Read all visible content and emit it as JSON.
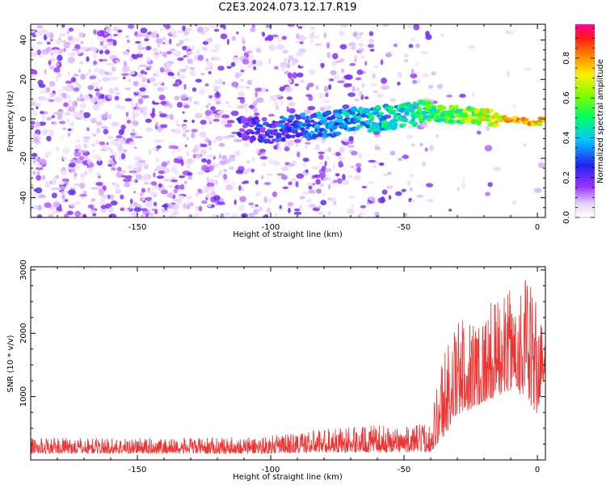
{
  "title": "C2E3.2024.073.12.17.R19",
  "chart_data": [
    {
      "type": "heatmap",
      "xlabel": "Height of straight line (km)",
      "ylabel": "Frequency (Hz)",
      "xlim": [
        -190,
        3
      ],
      "ylim": [
        -50,
        48
      ],
      "x_ticks": [
        -150,
        -100,
        -50,
        0
      ],
      "x_tick_labels": [
        "-150",
        "-100",
        "-50",
        "0"
      ],
      "y_ticks": [
        -40,
        -20,
        0,
        20,
        40
      ],
      "y_tick_labels": [
        "-40",
        "-20",
        "0",
        "20",
        "40"
      ],
      "colorbar": {
        "label": "Normalized spectral amplitude",
        "range": [
          0.0,
          0.97
        ],
        "ticks": [
          0.0,
          0.2,
          0.4,
          0.6,
          0.8
        ],
        "tick_labels": [
          "0.0",
          "0.2",
          "0.4",
          "0.6",
          "0.8"
        ],
        "colormap": "rainbow (white-violet-blue-cyan-green-yellow-red-magenta)"
      },
      "ridge": {
        "x": [
          -110,
          -100,
          -90,
          -80,
          -70,
          -60,
          -50,
          -40,
          -30,
          -20,
          -10,
          -5,
          0,
          3
        ],
        "y": [
          -5,
          -6,
          -4,
          -3,
          -1,
          0,
          2,
          3,
          2,
          1,
          0,
          -1,
          -2,
          0
        ],
        "amplitude": [
          0.3,
          0.35,
          0.4,
          0.45,
          0.5,
          0.55,
          0.6,
          0.65,
          0.7,
          0.8,
          0.9,
          0.95,
          0.9,
          0.8
        ]
      },
      "grid": false
    },
    {
      "type": "line",
      "xlabel": "Height of straight line (km)",
      "ylabel": "SNR (10 * v/v)",
      "xlim": [
        -190,
        3
      ],
      "ylim": [
        0,
        3050
      ],
      "x_ticks": [
        -150,
        -100,
        -50,
        0
      ],
      "x_tick_labels": [
        "-150",
        "-100",
        "-50",
        "0"
      ],
      "y_ticks": [
        1000,
        2000,
        3000
      ],
      "y_tick_labels": [
        "1000",
        "2000",
        "3000"
      ],
      "series": [
        {
          "color": "#ee3333",
          "envelope_x": [
            -190,
            -150,
            -120,
            -100,
            -80,
            -60,
            -50,
            -40,
            -36,
            -30,
            -20,
            -10,
            -5,
            0,
            3
          ],
          "envelope_low": [
            100,
            100,
            100,
            100,
            120,
            120,
            120,
            130,
            300,
            700,
            900,
            1100,
            1000,
            700,
            1400
          ],
          "envelope_high": [
            350,
            350,
            350,
            380,
            500,
            550,
            520,
            600,
            1700,
            2200,
            2400,
            2700,
            3000,
            2500,
            2000
          ]
        }
      ],
      "grid": false
    }
  ]
}
